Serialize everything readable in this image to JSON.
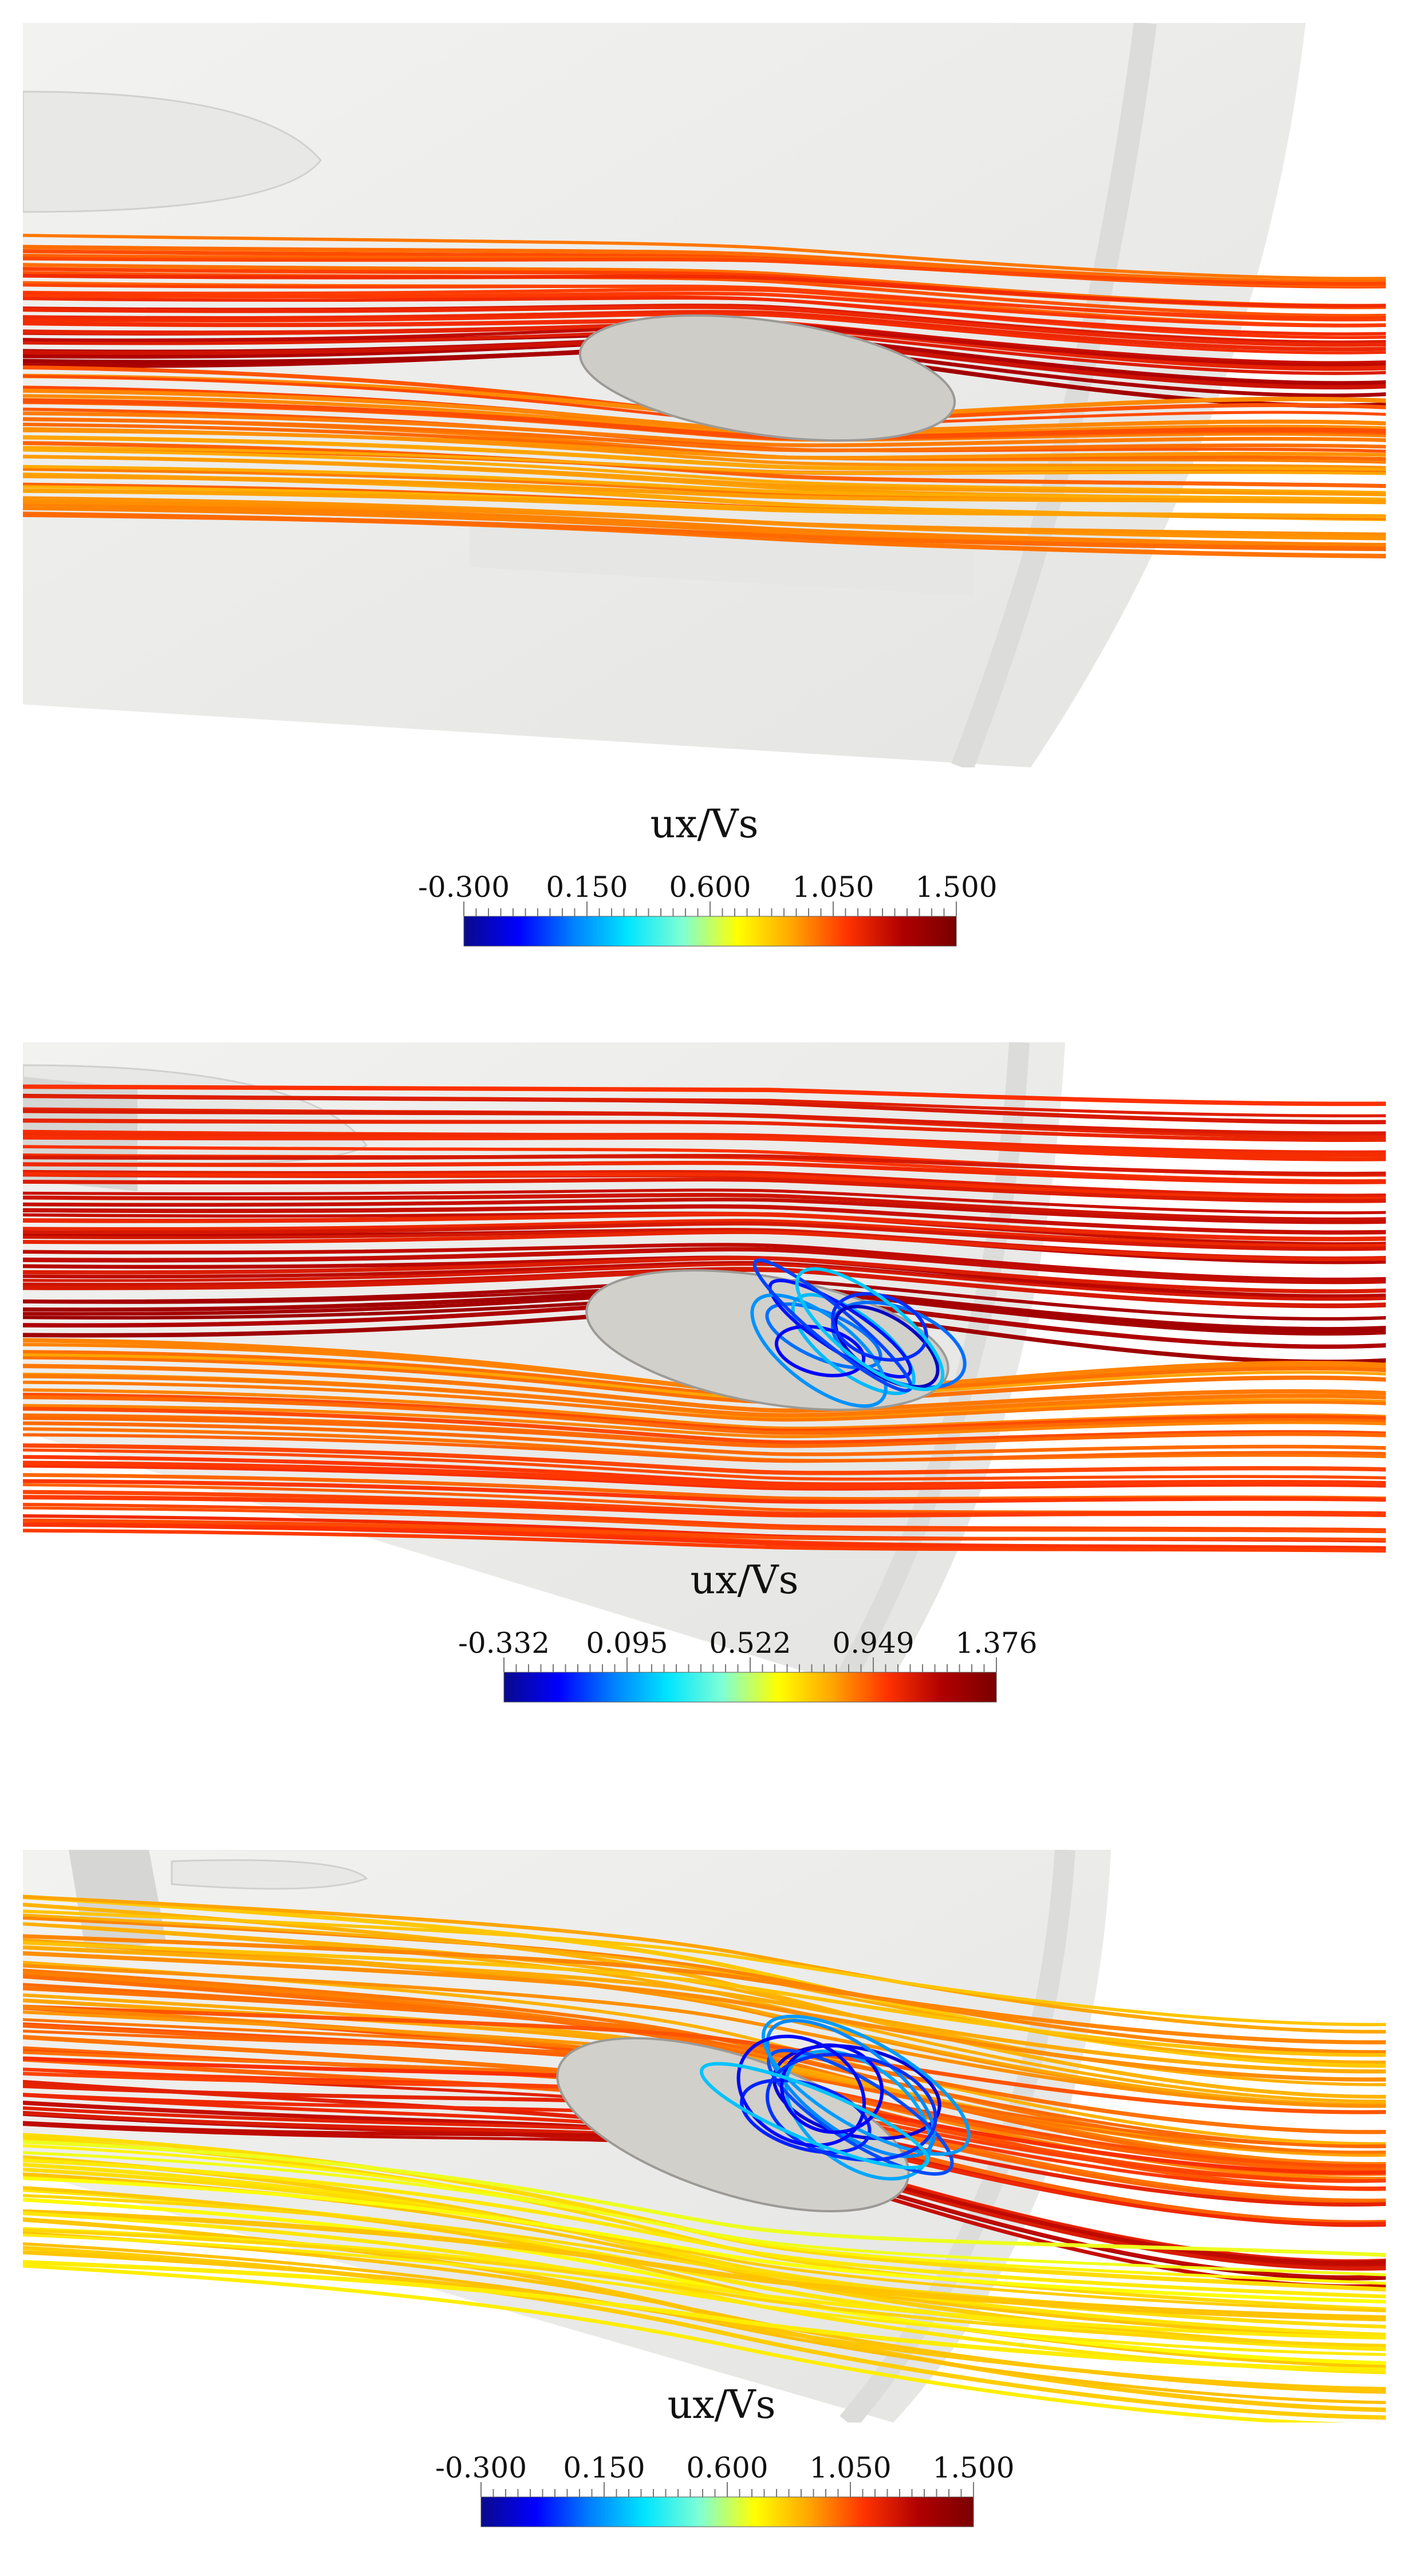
{
  "panels": [
    {
      "colorbar": {
        "title": "ux/Vs",
        "ticks": [
          "-0.300",
          "0.150",
          "0.600",
          "1.050",
          "1.500"
        ],
        "min": -0.3,
        "max": 1.5
      }
    },
    {
      "colorbar": {
        "title": "ux/Vs",
        "ticks": [
          "-0.332",
          "0.095",
          "0.522",
          "0.949",
          "1.376"
        ],
        "min": -0.332,
        "max": 1.376
      }
    },
    {
      "colorbar": {
        "title": "ux/Vs",
        "ticks": [
          "-0.300",
          "0.150",
          "0.600",
          "1.050",
          "1.500"
        ],
        "min": -0.3,
        "max": 1.5
      }
    }
  ],
  "colormap": [
    "#0a0a8c",
    "#0000ff",
    "#0080ff",
    "#00e5ff",
    "#7fffd4",
    "#ffff00",
    "#ffa500",
    "#ff3300",
    "#b00000",
    "#7a0000"
  ]
}
